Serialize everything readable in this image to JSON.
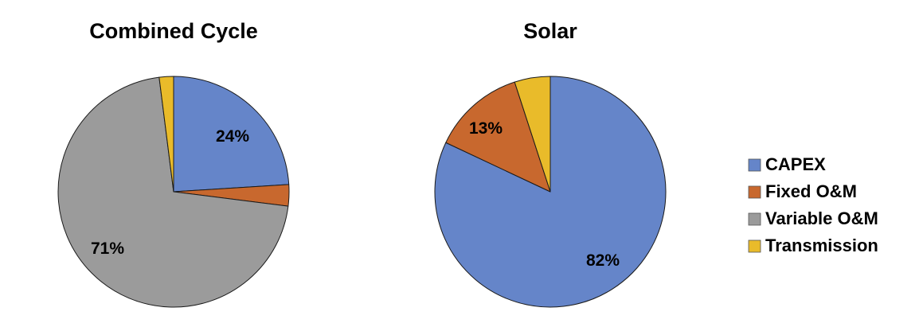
{
  "chart_data": [
    {
      "type": "pie",
      "title": "Combined Cycle",
      "start_angle_deg": 0,
      "direction": "clockwise",
      "slices": [
        {
          "label": "CAPEX",
          "value": 24,
          "display": "24%"
        },
        {
          "label": "Fixed O&M",
          "value": 3,
          "display": ""
        },
        {
          "label": "Variable O&M",
          "value": 71,
          "display": "71%"
        },
        {
          "label": "Transmission",
          "value": 2,
          "display": ""
        }
      ]
    },
    {
      "type": "pie",
      "title": "Solar",
      "start_angle_deg": 0,
      "direction": "clockwise",
      "slices": [
        {
          "label": "CAPEX",
          "value": 82,
          "display": "82%"
        },
        {
          "label": "Fixed O&M",
          "value": 13,
          "display": "13%"
        },
        {
          "label": "Variable O&M",
          "value": 0,
          "display": ""
        },
        {
          "label": "Transmission",
          "value": 5,
          "display": ""
        }
      ]
    }
  ],
  "legend": {
    "placement": "right",
    "items": [
      {
        "label": "CAPEX",
        "color": "#6585c9"
      },
      {
        "label": "Fixed O&M",
        "color": "#c8682e"
      },
      {
        "label": "Variable O&M",
        "color": "#9b9b9b"
      },
      {
        "label": "Transmission",
        "color": "#e9bb2a"
      }
    ]
  }
}
